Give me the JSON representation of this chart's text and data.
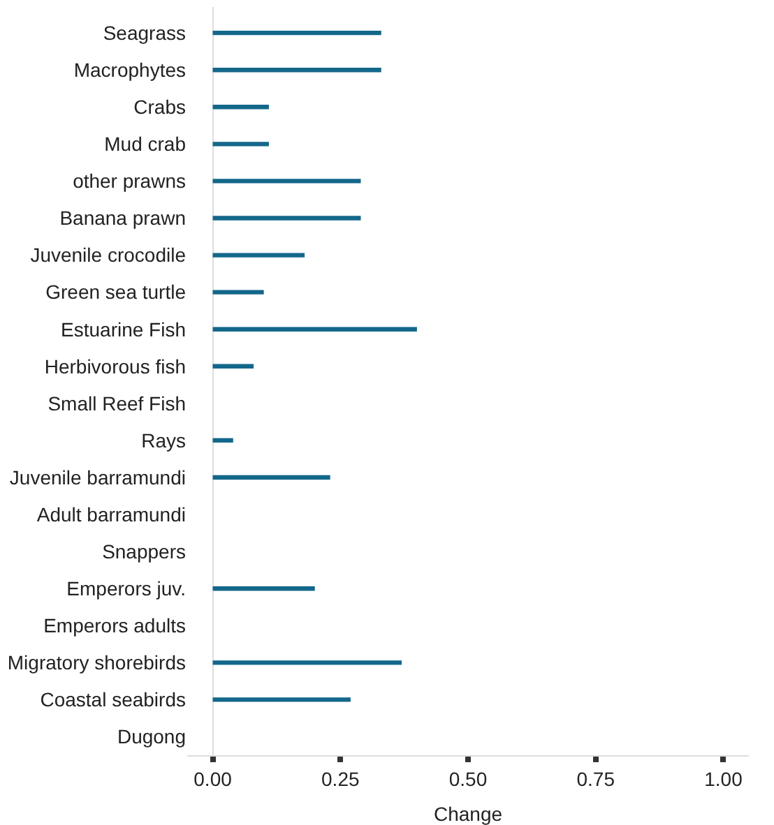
{
  "chart_data": {
    "type": "bar",
    "orientation": "horizontal",
    "xlabel": "Change",
    "categories": [
      "Seagrass",
      "Macrophytes",
      "Crabs",
      "Mud crab",
      "other prawns",
      "Banana prawn",
      "Juvenile crocodile",
      "Green sea turtle",
      "Estuarine Fish",
      "Herbivorous fish",
      "Small Reef Fish",
      "Rays",
      "Juvenile barramundi",
      "Adult barramundi",
      "Snappers",
      "Emperors juv.",
      "Emperors adults",
      "Migratory shorebirds",
      "Coastal seabirds",
      "Dugong"
    ],
    "values": [
      0.33,
      0.33,
      0.11,
      0.11,
      0.29,
      0.29,
      0.18,
      0.1,
      0.4,
      0.08,
      null,
      0.04,
      0.23,
      null,
      null,
      0.2,
      null,
      0.37,
      0.27,
      null
    ],
    "color": "#13678a",
    "xlim": [
      -0.05,
      1.05
    ],
    "xticks": [
      {
        "value": 0,
        "label": "0.00"
      },
      {
        "value": 0.25,
        "label": "0.25"
      },
      {
        "value": 0.5,
        "label": "0.50"
      },
      {
        "value": 0.75,
        "label": "0.75"
      },
      {
        "value": 1,
        "label": "1.00"
      }
    ],
    "legend": false
  }
}
